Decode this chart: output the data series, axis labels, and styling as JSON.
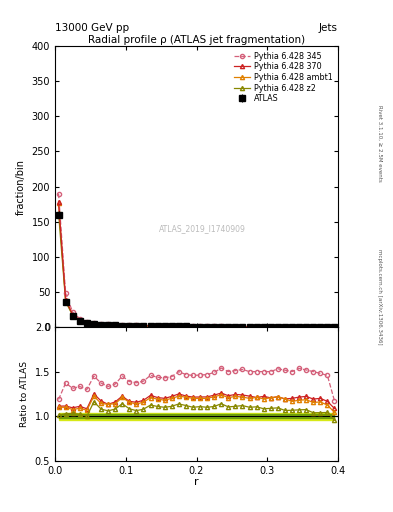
{
  "title": "Radial profile ρ (ATLAS jet fragmentation)",
  "top_label_left": "13000 GeV pp",
  "top_label_right": "Jets",
  "right_label_top": "Rivet 3.1.10, ≥ 2.5M events",
  "right_label_bottom": "mcplots.cern.ch [arXiv:1306.3436]",
  "watermark": "ATLAS_2019_I1740909",
  "ylabel_main": "fraction/bin",
  "ylabel_ratio": "Ratio to ATLAS",
  "xlabel": "r",
  "ylim_main": [
    0,
    400
  ],
  "ylim_ratio": [
    0.5,
    2.0
  ],
  "xlim": [
    0.0,
    0.4
  ],
  "r_values": [
    0.005,
    0.015,
    0.025,
    0.035,
    0.045,
    0.055,
    0.065,
    0.075,
    0.085,
    0.095,
    0.105,
    0.115,
    0.125,
    0.135,
    0.145,
    0.155,
    0.165,
    0.175,
    0.185,
    0.195,
    0.205,
    0.215,
    0.225,
    0.235,
    0.245,
    0.255,
    0.265,
    0.275,
    0.285,
    0.295,
    0.305,
    0.315,
    0.325,
    0.335,
    0.345,
    0.355,
    0.365,
    0.375,
    0.385,
    0.395
  ],
  "atlas_values": [
    160,
    35,
    16,
    9,
    6,
    4,
    3.5,
    3,
    2.5,
    2,
    1.8,
    1.6,
    1.4,
    1.2,
    1.1,
    1.0,
    0.9,
    0.8,
    0.75,
    0.7,
    0.65,
    0.6,
    0.55,
    0.5,
    0.48,
    0.45,
    0.42,
    0.4,
    0.38,
    0.36,
    0.34,
    0.32,
    0.31,
    0.3,
    0.28,
    0.27,
    0.26,
    0.25,
    0.24,
    0.23
  ],
  "atlas_errors": [
    5,
    1.5,
    0.8,
    0.5,
    0.3,
    0.25,
    0.2,
    0.18,
    0.15,
    0.12,
    0.1,
    0.09,
    0.08,
    0.07,
    0.06,
    0.05,
    0.05,
    0.04,
    0.04,
    0.04,
    0.03,
    0.03,
    0.03,
    0.03,
    0.03,
    0.03,
    0.03,
    0.03,
    0.03,
    0.03,
    0.03,
    0.03,
    0.03,
    0.03,
    0.03,
    0.03,
    0.03,
    0.03,
    0.03,
    0.03
  ],
  "py345_values": [
    190,
    48,
    21,
    12,
    7.8,
    5.8,
    4.8,
    4.0,
    3.4,
    2.9,
    2.5,
    2.2,
    1.95,
    1.75,
    1.58,
    1.43,
    1.3,
    1.2,
    1.1,
    1.02,
    0.95,
    0.88,
    0.82,
    0.77,
    0.72,
    0.68,
    0.64,
    0.6,
    0.57,
    0.54,
    0.51,
    0.49,
    0.47,
    0.45,
    0.43,
    0.41,
    0.39,
    0.37,
    0.35,
    0.27
  ],
  "py370_values": [
    178,
    39,
    17.5,
    10,
    6.5,
    5.0,
    4.1,
    3.4,
    2.9,
    2.45,
    2.1,
    1.85,
    1.65,
    1.48,
    1.33,
    1.2,
    1.1,
    1.0,
    0.92,
    0.85,
    0.79,
    0.73,
    0.68,
    0.63,
    0.59,
    0.56,
    0.52,
    0.49,
    0.46,
    0.44,
    0.41,
    0.39,
    0.37,
    0.36,
    0.34,
    0.33,
    0.31,
    0.3,
    0.28,
    0.25
  ],
  "pyambt1_values": [
    176,
    38.5,
    17.2,
    9.8,
    6.4,
    4.9,
    4.0,
    3.4,
    2.85,
    2.42,
    2.08,
    1.82,
    1.62,
    1.45,
    1.31,
    1.18,
    1.08,
    0.98,
    0.91,
    0.84,
    0.78,
    0.72,
    0.67,
    0.62,
    0.58,
    0.55,
    0.51,
    0.48,
    0.46,
    0.43,
    0.41,
    0.39,
    0.37,
    0.35,
    0.33,
    0.32,
    0.3,
    0.29,
    0.27,
    0.24
  ],
  "pyz2_values": [
    162,
    36,
    16.5,
    9.2,
    6.0,
    4.65,
    3.78,
    3.18,
    2.7,
    2.28,
    1.95,
    1.7,
    1.51,
    1.35,
    1.22,
    1.1,
    1.0,
    0.91,
    0.84,
    0.77,
    0.72,
    0.66,
    0.61,
    0.57,
    0.53,
    0.5,
    0.47,
    0.44,
    0.42,
    0.39,
    0.37,
    0.35,
    0.33,
    0.32,
    0.3,
    0.29,
    0.27,
    0.26,
    0.25,
    0.22
  ],
  "color_atlas": "#000000",
  "color_py345": "#d4607a",
  "color_py370": "#cc2222",
  "color_pyambt1": "#e08000",
  "color_pyz2": "#888800",
  "bg_color": "#ffffff",
  "band_yellow": "#d4e800",
  "band_green": "#408000"
}
